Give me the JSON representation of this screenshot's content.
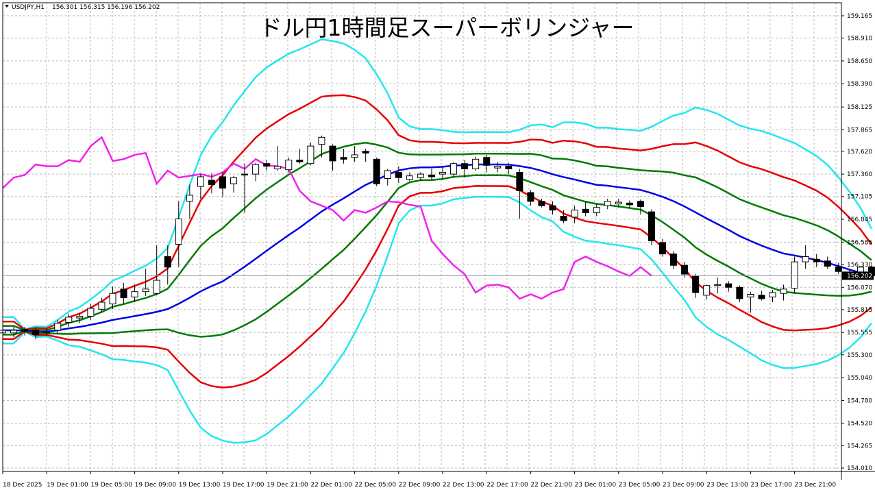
{
  "header": {
    "symbol": "USDJPY,H1",
    "ohlc": "156.301 156.315 156.196 156.202"
  },
  "chart_data": {
    "type": "candlestick",
    "title": "ドル円1時間足スーパーボリンジャー",
    "current_price_label": "156.202",
    "y_ticks": [
      "159.165",
      "158.910",
      "158.650",
      "158.390",
      "158.125",
      "157.865",
      "157.620",
      "157.360",
      "157.105",
      "156.845",
      "156.585",
      "156.330",
      "156.070",
      "155.815",
      "155.555",
      "155.300",
      "155.040",
      "154.780",
      "154.520",
      "154.265",
      "154.010"
    ],
    "x_ticks": [
      "18 Dec 2025",
      "19 Dec 01:00",
      "19 Dec 05:00",
      "19 Dec 09:00",
      "19 Dec 13:00",
      "19 Dec 17:00",
      "19 Dec 21:00",
      "22 Dec 01:00",
      "22 Dec 05:00",
      "22 Dec 09:00",
      "22 Dec 13:00",
      "22 Dec 17:00",
      "22 Dec 21:00",
      "23 Dec 01:00",
      "23 Dec 05:00",
      "23 Dec 09:00",
      "23 Dec 13:00",
      "23 Dec 17:00",
      "23 Dec 21:00"
    ],
    "x_tick_index": [
      0,
      4,
      8,
      12,
      16,
      20,
      24,
      28,
      32,
      36,
      40,
      44,
      48,
      52,
      56,
      60,
      64,
      68,
      72
    ],
    "ylim": [
      154.0,
      159.25
    ],
    "current_price": 156.202,
    "colors": {
      "sma": "#0000e6",
      "band1": "#007a00",
      "band2": "#e60000",
      "band3": "#22e6f0",
      "chikou": "#ee22ee",
      "candle": "#000000",
      "grid": "#b8b8b8"
    },
    "candles": [
      [
        155.55,
        155.63,
        155.47,
        155.58
      ],
      [
        155.55,
        155.62,
        155.5,
        155.58
      ],
      [
        155.59,
        155.62,
        155.52,
        155.57
      ],
      [
        155.58,
        155.61,
        155.48,
        155.53
      ],
      [
        155.56,
        155.6,
        155.52,
        155.56
      ],
      [
        155.58,
        155.7,
        155.55,
        155.66
      ],
      [
        155.67,
        155.77,
        155.62,
        155.73
      ],
      [
        155.72,
        155.78,
        155.66,
        155.74
      ],
      [
        155.74,
        155.88,
        155.7,
        155.83
      ],
      [
        155.82,
        155.95,
        155.78,
        155.9
      ],
      [
        155.88,
        156.08,
        155.82,
        156.0
      ],
      [
        156.05,
        156.12,
        155.88,
        155.95
      ],
      [
        155.96,
        156.1,
        155.9,
        156.02
      ],
      [
        156.02,
        156.28,
        155.97,
        156.05
      ],
      [
        156.0,
        156.55,
        155.98,
        156.15
      ],
      [
        156.42,
        156.55,
        156.1,
        156.3
      ],
      [
        156.56,
        157.05,
        156.3,
        156.85
      ],
      [
        157.05,
        157.24,
        156.85,
        157.12
      ],
      [
        157.22,
        157.36,
        157.08,
        157.33
      ],
      [
        157.29,
        157.37,
        157.14,
        157.24
      ],
      [
        157.33,
        157.38,
        157.1,
        157.2
      ],
      [
        157.25,
        157.34,
        157.15,
        157.32
      ],
      [
        157.36,
        157.48,
        156.92,
        157.35
      ],
      [
        157.36,
        157.49,
        157.28,
        157.47
      ],
      [
        157.48,
        157.52,
        157.4,
        157.45
      ],
      [
        157.42,
        157.68,
        157.4,
        157.45
      ],
      [
        157.41,
        157.55,
        157.38,
        157.52
      ],
      [
        157.52,
        157.65,
        157.48,
        157.5
      ],
      [
        157.48,
        157.72,
        157.46,
        157.68
      ],
      [
        157.7,
        157.8,
        157.55,
        157.78
      ],
      [
        157.68,
        157.7,
        157.4,
        157.51
      ],
      [
        157.55,
        157.65,
        157.48,
        157.53
      ],
      [
        157.55,
        157.68,
        157.5,
        157.58
      ],
      [
        157.62,
        157.65,
        157.5,
        157.6
      ],
      [
        157.53,
        157.55,
        157.22,
        157.25
      ],
      [
        157.31,
        157.42,
        157.23,
        157.4
      ],
      [
        157.38,
        157.45,
        157.26,
        157.32
      ],
      [
        157.3,
        157.38,
        157.28,
        157.34
      ],
      [
        157.32,
        157.38,
        157.28,
        157.36
      ],
      [
        157.35,
        157.42,
        157.3,
        157.33
      ],
      [
        157.36,
        157.45,
        157.3,
        157.38
      ],
      [
        157.36,
        157.5,
        157.32,
        157.48
      ],
      [
        157.48,
        157.52,
        157.32,
        157.42
      ],
      [
        157.42,
        157.56,
        157.4,
        157.53
      ],
      [
        157.55,
        157.58,
        157.38,
        157.46
      ],
      [
        157.43,
        157.5,
        157.38,
        157.45
      ],
      [
        157.45,
        157.49,
        157.36,
        157.42
      ],
      [
        157.38,
        157.42,
        156.85,
        157.17
      ],
      [
        157.15,
        157.18,
        157.0,
        157.05
      ],
      [
        157.05,
        157.08,
        156.98,
        157.0
      ],
      [
        157.0,
        157.05,
        156.9,
        156.95
      ],
      [
        156.88,
        156.95,
        156.8,
        156.83
      ],
      [
        156.87,
        157.0,
        156.8,
        156.95
      ],
      [
        156.96,
        157.05,
        156.88,
        156.92
      ],
      [
        156.92,
        157.02,
        156.88,
        156.98
      ],
      [
        157.0,
        157.08,
        156.96,
        157.05
      ],
      [
        157.02,
        157.08,
        156.98,
        157.04
      ],
      [
        157.03,
        157.06,
        156.98,
        157.01
      ],
      [
        157.05,
        157.07,
        156.9,
        156.99
      ],
      [
        156.93,
        156.96,
        156.55,
        156.6
      ],
      [
        156.58,
        156.62,
        156.42,
        156.45
      ],
      [
        156.45,
        156.48,
        156.28,
        156.32
      ],
      [
        156.32,
        156.36,
        156.18,
        156.22
      ],
      [
        156.2,
        156.22,
        155.95,
        156.01
      ],
      [
        155.98,
        156.1,
        155.93,
        156.09
      ],
      [
        156.09,
        156.18,
        156.0,
        156.1
      ],
      [
        156.11,
        156.14,
        156.02,
        156.07
      ],
      [
        156.07,
        156.09,
        155.9,
        155.94
      ],
      [
        155.96,
        156.02,
        155.78,
        155.99
      ],
      [
        155.98,
        156.03,
        155.92,
        155.94
      ],
      [
        155.96,
        156.04,
        155.9,
        156.01
      ],
      [
        156.0,
        156.1,
        155.92,
        156.05
      ],
      [
        156.06,
        156.42,
        156.0,
        156.36
      ],
      [
        156.36,
        156.55,
        156.28,
        156.42
      ],
      [
        156.39,
        156.45,
        156.3,
        156.36
      ],
      [
        156.37,
        156.42,
        156.28,
        156.31
      ],
      [
        156.3,
        156.35,
        156.22,
        156.25
      ],
      [
        156.24,
        156.28,
        156.18,
        156.2
      ],
      [
        156.19,
        156.31,
        156.17,
        156.3
      ],
      [
        156.301,
        156.315,
        156.196,
        156.202
      ]
    ]
  }
}
